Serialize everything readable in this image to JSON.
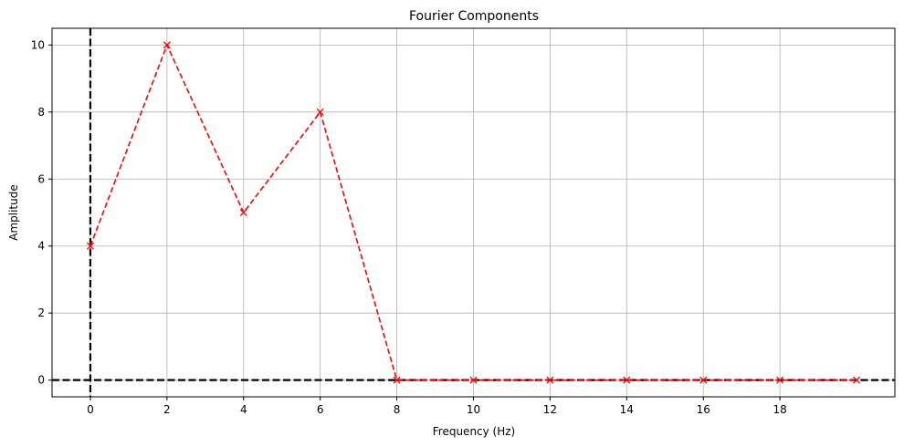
{
  "chart_data": {
    "type": "line",
    "title": "Fourier Components",
    "xlabel": "Frequency (Hz)",
    "ylabel": "Amplitude",
    "x": [
      0,
      2,
      4,
      6,
      8,
      10,
      12,
      14,
      16,
      18,
      20
    ],
    "series": [
      {
        "values": [
          4,
          10,
          5,
          8,
          0,
          0,
          0,
          0,
          0,
          0,
          0
        ],
        "color": "#ff0000",
        "line_style": "dashed",
        "marker": "x"
      }
    ],
    "xlim": [
      -1,
      21
    ],
    "ylim": [
      -0.5,
      10.5
    ],
    "xticks": [
      0,
      2,
      4,
      6,
      8,
      10,
      12,
      14,
      16,
      18
    ],
    "yticks": [
      0,
      2,
      4,
      6,
      8,
      10
    ],
    "grid": true,
    "reference_lines": [
      {
        "orientation": "vertical",
        "value": 0,
        "color": "#000000",
        "style": "dashed"
      },
      {
        "orientation": "horizontal",
        "value": 0,
        "color": "#000000",
        "style": "dashed"
      }
    ]
  }
}
